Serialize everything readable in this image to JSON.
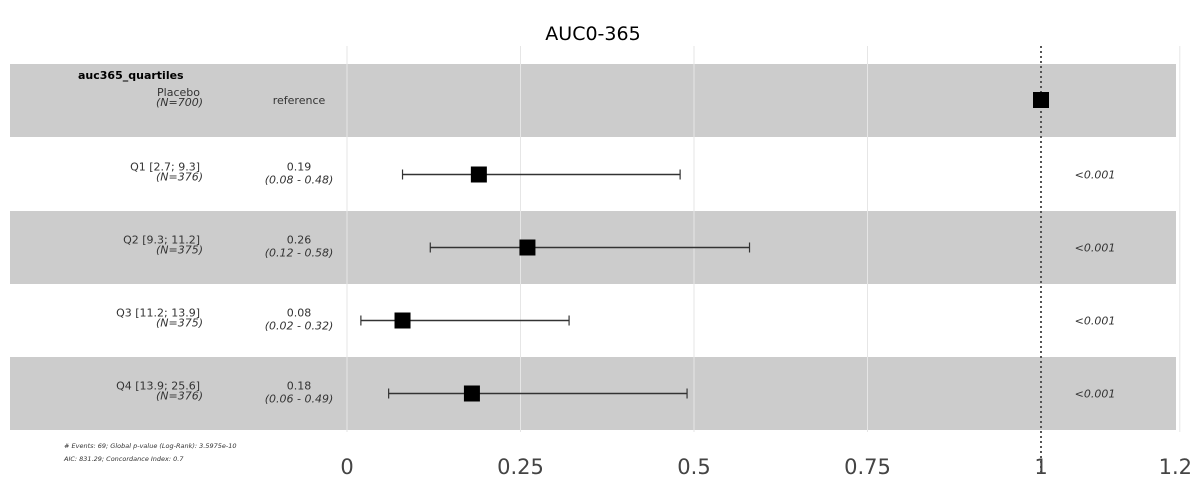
{
  "chart_data": {
    "type": "forest",
    "title": "AUC0-365",
    "group_label": "auc365_quartiles",
    "xlim": [
      0,
      1.2
    ],
    "x_ticks": [
      0,
      0.25,
      0.5,
      0.75,
      1,
      1.2
    ],
    "x_tick_labels": [
      "0",
      "0.25",
      "0.5",
      "0.75",
      "1",
      "1.2"
    ],
    "reference_line": 1,
    "rows": [
      {
        "label": "Placebo",
        "n": "(N=700)",
        "estimate_text": "reference",
        "ci_text": "",
        "estimate": 1.0,
        "ci_low": null,
        "ci_high": null,
        "p": "",
        "shaded": true
      },
      {
        "label": "Q1 [2.7; 9.3]",
        "n": "(N=376)",
        "estimate_text": "0.19",
        "ci_text": "(0.08 - 0.48)",
        "estimate": 0.19,
        "ci_low": 0.08,
        "ci_high": 0.48,
        "p": "<0.001",
        "shaded": false
      },
      {
        "label": "Q2 [9.3; 11.2]",
        "n": "(N=375)",
        "estimate_text": "0.26",
        "ci_text": "(0.12 - 0.58)",
        "estimate": 0.26,
        "ci_low": 0.12,
        "ci_high": 0.58,
        "p": "<0.001",
        "shaded": true
      },
      {
        "label": "Q3 [11.2; 13.9]",
        "n": "(N=375)",
        "estimate_text": "0.08",
        "ci_text": "(0.02 - 0.32)",
        "estimate": 0.08,
        "ci_low": 0.02,
        "ci_high": 0.32,
        "p": "<0.001",
        "shaded": false
      },
      {
        "label": "Q4 [13.9; 25.6]",
        "n": "(N=376)",
        "estimate_text": "0.18",
        "ci_text": "(0.06 - 0.49)",
        "estimate": 0.18,
        "ci_low": 0.06,
        "ci_high": 0.49,
        "p": "<0.001",
        "shaded": true
      }
    ],
    "footnote_line1": "# Events: 69; Global p-value (Log-Rank): 3.5975e-10",
    "footnote_line2": "AIC: 831.29; Concordance Index: 0.7",
    "colors": {
      "band": "#cccccc",
      "marker": "#000000",
      "grid": "#e6e6e6",
      "refline": "#555555"
    }
  }
}
